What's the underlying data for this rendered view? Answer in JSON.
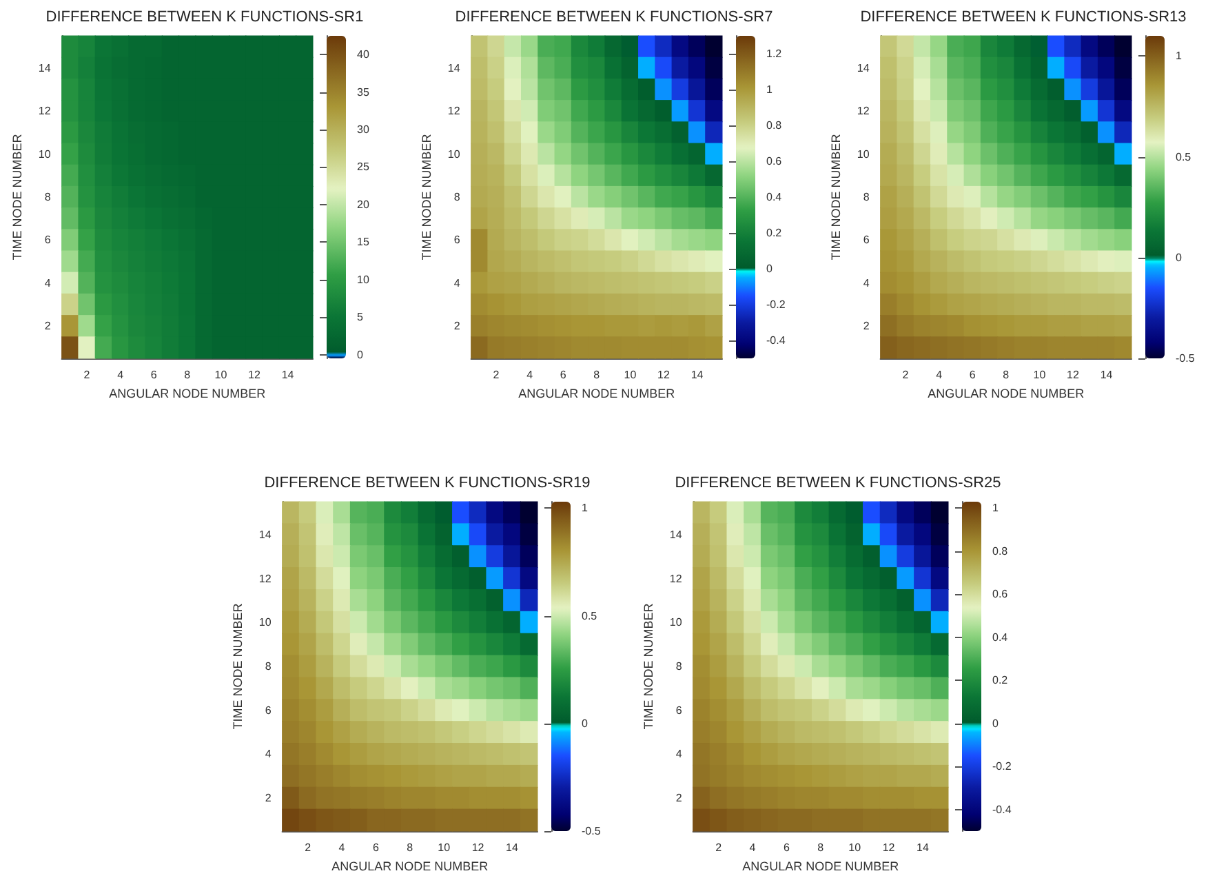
{
  "chart_data": [
    {
      "type": "heatmap",
      "title": "DIFFERENCE BETWEEN K FUNCTIONS-SR1",
      "xlabel": "ANGULAR NODE NUMBER",
      "ylabel": "TIME NODE NUMBER",
      "categories": [
        null,
        "2",
        null,
        "4",
        null,
        "6",
        null,
        "8",
        null,
        "10",
        null,
        "12",
        null,
        "14",
        null
      ],
      "y_categories": [
        null,
        "14",
        null,
        "12",
        null,
        "10",
        null,
        "8",
        null,
        "6",
        null,
        "4",
        null,
        "2",
        null
      ],
      "cells": [
        [
          8,
          7,
          5,
          4,
          3,
          3,
          2,
          2,
          2,
          2,
          2,
          2,
          2,
          2,
          2
        ],
        [
          8,
          6.5,
          4.5,
          3.5,
          3,
          2.5,
          2,
          2,
          2,
          2,
          2,
          2,
          2,
          2,
          2
        ],
        [
          9,
          7,
          5,
          4,
          3,
          2.5,
          2,
          2,
          2,
          2,
          2,
          2,
          2,
          2,
          2
        ],
        [
          9,
          7,
          5.3,
          4,
          3,
          2.5,
          2,
          2,
          2,
          2,
          2,
          2,
          2,
          2,
          2
        ],
        [
          10,
          7.5,
          5.8,
          4.5,
          3.5,
          3,
          2.5,
          2,
          2,
          2,
          2,
          2,
          2,
          2,
          2
        ],
        [
          11,
          8,
          6,
          4.7,
          3.8,
          3,
          2.5,
          2,
          2,
          2,
          2,
          2,
          2,
          2,
          2
        ],
        [
          12,
          8.5,
          6.5,
          5.2,
          4.2,
          3.5,
          3,
          2.5,
          2,
          2,
          2,
          2,
          2,
          2,
          2
        ],
        [
          13,
          9,
          7,
          6,
          5,
          4,
          3.5,
          3,
          2,
          2,
          2,
          2,
          2,
          2,
          2
        ],
        [
          14,
          10,
          7.5,
          6.5,
          5.7,
          5,
          4,
          3.5,
          2.5,
          2,
          2,
          2,
          2,
          2,
          2
        ],
        [
          16,
          11,
          8,
          7,
          6.3,
          5.7,
          5,
          4,
          3,
          2,
          2,
          2,
          2,
          2,
          2
        ],
        [
          18,
          12,
          8.5,
          7.5,
          6.6,
          6,
          5.4,
          4.5,
          3,
          2,
          2,
          2,
          2,
          2,
          2
        ],
        [
          21,
          13,
          9,
          8,
          7,
          6.3,
          5.6,
          4.7,
          3,
          2,
          2,
          2,
          2,
          2,
          2
        ],
        [
          26,
          15,
          10,
          8.5,
          7.3,
          6.5,
          5.8,
          4.8,
          3,
          2,
          2,
          2,
          2,
          2,
          2
        ],
        [
          33,
          18,
          11,
          9,
          7.5,
          6.8,
          6,
          4.9,
          3,
          2,
          2,
          2,
          2,
          2,
          2
        ],
        [
          40,
          22,
          12,
          9.5,
          8,
          7,
          6,
          5,
          3,
          2,
          2,
          2,
          2,
          2,
          2
        ]
      ],
      "clim": [
        -0.5,
        42.5
      ],
      "cticks": [
        0,
        5,
        10,
        15,
        20,
        25,
        30,
        35,
        40
      ]
    },
    {
      "type": "heatmap",
      "title": "DIFFERENCE BETWEEN K FUNCTIONS-SR7",
      "xlabel": "ANGULAR NODE NUMBER",
      "ylabel": "TIME NODE NUMBER",
      "categories": [
        null,
        "2",
        null,
        "4",
        null,
        "6",
        null,
        "8",
        null,
        "10",
        null,
        "12",
        null,
        "14",
        null
      ],
      "y_categories": [
        null,
        "14",
        null,
        "12",
        null,
        "10",
        null,
        "8",
        null,
        "6",
        null,
        "4",
        null,
        "2",
        null
      ],
      "cells": [
        [
          0.85,
          0.78,
          0.62,
          0.54,
          0.38,
          0.36,
          0.23,
          0.18,
          0.08,
          0,
          -0.15,
          -0.25,
          -0.38,
          -0.45,
          -0.5
        ],
        [
          0.87,
          0.8,
          0.66,
          0.58,
          0.42,
          0.38,
          0.26,
          0.23,
          0.13,
          0.05,
          -0.05,
          -0.16,
          -0.3,
          -0.39,
          -0.48
        ],
        [
          0.88,
          0.82,
          0.68,
          0.6,
          0.46,
          0.42,
          0.31,
          0.26,
          0.18,
          0.1,
          0.02,
          -0.08,
          -0.2,
          -0.32,
          -0.45
        ],
        [
          0.9,
          0.84,
          0.72,
          0.64,
          0.49,
          0.46,
          0.36,
          0.31,
          0.23,
          0.14,
          0.08,
          0.02,
          -0.07,
          -0.22,
          -0.38
        ],
        [
          0.91,
          0.86,
          0.76,
          0.67,
          0.54,
          0.49,
          0.4,
          0.35,
          0.29,
          0.22,
          0.16,
          0.11,
          0.04,
          -0.08,
          -0.26
        ],
        [
          0.92,
          0.89,
          0.79,
          0.71,
          0.6,
          0.53,
          0.46,
          0.4,
          0.35,
          0.29,
          0.23,
          0.18,
          0.12,
          0.06,
          -0.05
        ],
        [
          0.93,
          0.91,
          0.83,
          0.74,
          0.66,
          0.59,
          0.52,
          0.47,
          0.41,
          0.36,
          0.31,
          0.26,
          0.22,
          0.17,
          0.08
        ],
        [
          0.94,
          0.92,
          0.86,
          0.78,
          0.72,
          0.67,
          0.6,
          0.54,
          0.5,
          0.46,
          0.41,
          0.36,
          0.34,
          0.29,
          0.23
        ],
        [
          0.96,
          0.93,
          0.88,
          0.83,
          0.78,
          0.74,
          0.7,
          0.65,
          0.6,
          0.54,
          0.52,
          0.48,
          0.44,
          0.42,
          0.37
        ],
        [
          1.05,
          0.94,
          0.9,
          0.87,
          0.83,
          0.8,
          0.79,
          0.76,
          0.72,
          0.67,
          0.64,
          0.6,
          0.56,
          0.54,
          0.52
        ],
        [
          1.05,
          0.95,
          0.93,
          0.9,
          0.88,
          0.86,
          0.84,
          0.83,
          0.82,
          0.8,
          0.77,
          0.74,
          0.72,
          0.7,
          0.67
        ],
        [
          1.0,
          0.97,
          0.96,
          0.94,
          0.92,
          0.9,
          0.89,
          0.88,
          0.87,
          0.86,
          0.85,
          0.84,
          0.83,
          0.82,
          0.8
        ],
        [
          1.04,
          1.02,
          1.0,
          0.98,
          0.97,
          0.96,
          0.95,
          0.94,
          0.93,
          0.92,
          0.91,
          0.9,
          0.9,
          0.89,
          0.88
        ],
        [
          1.08,
          1.06,
          1.05,
          1.04,
          1.03,
          1.02,
          1.01,
          1.01,
          1.0,
          1.0,
          0.99,
          1.0,
          0.99,
          1.0,
          0.97
        ],
        [
          1.15,
          1.1,
          1.09,
          1.08,
          1.07,
          1.06,
          1.05,
          1.05,
          1.05,
          1.04,
          1.04,
          1.04,
          1.04,
          1.03,
          1.02
        ]
      ],
      "clim": [
        -0.5,
        1.3
      ],
      "cticks": [
        -0.4,
        -0.2,
        0,
        0.2,
        0.4,
        0.6,
        0.8,
        1,
        1.2
      ]
    },
    {
      "type": "heatmap",
      "title": "DIFFERENCE BETWEEN K FUNCTIONS-SR13",
      "xlabel": "ANGULAR NODE NUMBER",
      "ylabel": "TIME NODE NUMBER",
      "categories": [
        null,
        "2",
        null,
        "4",
        null,
        "6",
        null,
        "8",
        null,
        "10",
        null,
        "12",
        null,
        "14",
        null
      ],
      "y_categories": [
        null,
        "14",
        null,
        "12",
        null,
        "10",
        null,
        "8",
        null,
        "6",
        null,
        "4",
        null,
        "2",
        null
      ],
      "cells": [
        [
          0.71,
          0.65,
          0.52,
          0.45,
          0.32,
          0.3,
          0.19,
          0.15,
          0.07,
          0,
          -0.15,
          -0.25,
          -0.38,
          -0.45,
          -0.5
        ],
        [
          0.73,
          0.67,
          0.55,
          0.48,
          0.35,
          0.32,
          0.22,
          0.19,
          0.11,
          0.04,
          -0.05,
          -0.16,
          -0.3,
          -0.39,
          -0.48
        ],
        [
          0.74,
          0.68,
          0.57,
          0.5,
          0.38,
          0.35,
          0.26,
          0.22,
          0.15,
          0.08,
          0.02,
          -0.08,
          -0.2,
          -0.32,
          -0.45
        ],
        [
          0.76,
          0.7,
          0.6,
          0.53,
          0.41,
          0.38,
          0.3,
          0.26,
          0.19,
          0.12,
          0.07,
          0.02,
          -0.07,
          -0.22,
          -0.38
        ],
        [
          0.77,
          0.72,
          0.63,
          0.56,
          0.45,
          0.41,
          0.33,
          0.29,
          0.24,
          0.18,
          0.13,
          0.09,
          0.03,
          -0.08,
          -0.26
        ],
        [
          0.79,
          0.74,
          0.66,
          0.59,
          0.5,
          0.44,
          0.38,
          0.33,
          0.29,
          0.24,
          0.19,
          0.15,
          0.1,
          0.05,
          -0.05
        ],
        [
          0.8,
          0.76,
          0.69,
          0.62,
          0.55,
          0.49,
          0.43,
          0.39,
          0.34,
          0.3,
          0.26,
          0.22,
          0.18,
          0.14,
          0.07
        ],
        [
          0.82,
          0.78,
          0.72,
          0.65,
          0.6,
          0.56,
          0.5,
          0.45,
          0.42,
          0.38,
          0.34,
          0.3,
          0.28,
          0.24,
          0.19
        ],
        [
          0.83,
          0.8,
          0.75,
          0.69,
          0.65,
          0.62,
          0.58,
          0.54,
          0.5,
          0.45,
          0.43,
          0.4,
          0.37,
          0.35,
          0.31
        ],
        [
          0.85,
          0.82,
          0.78,
          0.73,
          0.69,
          0.67,
          0.66,
          0.63,
          0.6,
          0.56,
          0.53,
          0.5,
          0.47,
          0.45,
          0.43
        ],
        [
          0.86,
          0.84,
          0.8,
          0.77,
          0.74,
          0.72,
          0.7,
          0.69,
          0.68,
          0.66,
          0.64,
          0.62,
          0.6,
          0.58,
          0.56
        ],
        [
          0.88,
          0.86,
          0.83,
          0.8,
          0.78,
          0.76,
          0.75,
          0.74,
          0.73,
          0.72,
          0.71,
          0.7,
          0.69,
          0.68,
          0.67
        ],
        [
          0.92,
          0.89,
          0.86,
          0.84,
          0.82,
          0.81,
          0.8,
          0.79,
          0.78,
          0.77,
          0.76,
          0.76,
          0.75,
          0.75,
          0.74
        ],
        [
          0.96,
          0.93,
          0.91,
          0.9,
          0.89,
          0.87,
          0.86,
          0.85,
          0.84,
          0.84,
          0.83,
          0.83,
          0.82,
          0.82,
          0.81
        ],
        [
          1.0,
          0.98,
          0.97,
          0.96,
          0.95,
          0.94,
          0.93,
          0.92,
          0.91,
          0.91,
          0.9,
          0.9,
          0.9,
          0.9,
          0.89
        ]
      ],
      "clim": [
        -0.5,
        1.1
      ],
      "cticks": [
        -0.5,
        0,
        0.5,
        1
      ]
    },
    {
      "type": "heatmap",
      "title": "DIFFERENCE BETWEEN K FUNCTIONS-SR19",
      "xlabel": "ANGULAR NODE NUMBER",
      "ylabel": "TIME NODE NUMBER",
      "categories": [
        null,
        "2",
        null,
        "4",
        null,
        "6",
        null,
        "8",
        null,
        "10",
        null,
        "12",
        null,
        "14",
        null
      ],
      "y_categories": [
        null,
        "14",
        null,
        "12",
        null,
        "10",
        null,
        "8",
        null,
        "6",
        null,
        "4",
        null,
        "2",
        null
      ],
      "cells": [
        [
          0.71,
          0.65,
          0.52,
          0.45,
          0.32,
          0.3,
          0.19,
          0.15,
          0.07,
          0,
          -0.15,
          -0.25,
          -0.38,
          -0.45,
          -0.5
        ],
        [
          0.73,
          0.67,
          0.55,
          0.48,
          0.35,
          0.32,
          0.22,
          0.19,
          0.11,
          0.04,
          -0.05,
          -0.16,
          -0.3,
          -0.39,
          -0.48
        ],
        [
          0.74,
          0.68,
          0.57,
          0.5,
          0.38,
          0.35,
          0.26,
          0.22,
          0.15,
          0.08,
          0.02,
          -0.08,
          -0.2,
          -0.32,
          -0.45
        ],
        [
          0.76,
          0.7,
          0.6,
          0.53,
          0.41,
          0.38,
          0.3,
          0.26,
          0.19,
          0.12,
          0.07,
          0.02,
          -0.07,
          -0.22,
          -0.38
        ],
        [
          0.77,
          0.72,
          0.63,
          0.56,
          0.45,
          0.41,
          0.33,
          0.29,
          0.24,
          0.18,
          0.13,
          0.09,
          0.03,
          -0.08,
          -0.26
        ],
        [
          0.79,
          0.74,
          0.66,
          0.59,
          0.5,
          0.44,
          0.38,
          0.33,
          0.29,
          0.24,
          0.19,
          0.15,
          0.1,
          0.05,
          -0.05
        ],
        [
          0.8,
          0.76,
          0.69,
          0.62,
          0.55,
          0.49,
          0.43,
          0.39,
          0.34,
          0.3,
          0.26,
          0.22,
          0.18,
          0.14,
          0.07
        ],
        [
          0.82,
          0.78,
          0.72,
          0.65,
          0.6,
          0.56,
          0.5,
          0.45,
          0.42,
          0.38,
          0.34,
          0.3,
          0.28,
          0.24,
          0.19
        ],
        [
          0.83,
          0.8,
          0.75,
          0.69,
          0.65,
          0.62,
          0.58,
          0.54,
          0.5,
          0.45,
          0.43,
          0.4,
          0.37,
          0.35,
          0.31
        ],
        [
          0.85,
          0.82,
          0.78,
          0.73,
          0.69,
          0.67,
          0.66,
          0.63,
          0.6,
          0.56,
          0.53,
          0.5,
          0.47,
          0.45,
          0.43
        ],
        [
          0.86,
          0.84,
          0.8,
          0.77,
          0.74,
          0.72,
          0.7,
          0.69,
          0.68,
          0.66,
          0.64,
          0.62,
          0.6,
          0.58,
          0.56
        ],
        [
          0.88,
          0.86,
          0.83,
          0.8,
          0.78,
          0.76,
          0.75,
          0.74,
          0.73,
          0.72,
          0.71,
          0.7,
          0.69,
          0.68,
          0.67
        ],
        [
          0.9,
          0.88,
          0.86,
          0.84,
          0.82,
          0.81,
          0.8,
          0.79,
          0.78,
          0.77,
          0.76,
          0.76,
          0.75,
          0.75,
          0.74
        ],
        [
          0.95,
          0.91,
          0.89,
          0.88,
          0.87,
          0.86,
          0.85,
          0.84,
          0.84,
          0.83,
          0.83,
          0.82,
          0.82,
          0.82,
          0.81
        ],
        [
          1.0,
          0.98,
          0.96,
          0.95,
          0.94,
          0.92,
          0.92,
          0.91,
          0.91,
          0.9,
          0.9,
          0.9,
          0.9,
          0.9,
          0.89
        ]
      ],
      "clim": [
        -0.5,
        1.03
      ],
      "cticks": [
        -0.5,
        0,
        0.5,
        1
      ]
    },
    {
      "type": "heatmap",
      "title": "DIFFERENCE BETWEEN K FUNCTIONS-SR25",
      "xlabel": "ANGULAR NODE NUMBER",
      "ylabel": "TIME NODE NUMBER",
      "categories": [
        null,
        "2",
        null,
        "4",
        null,
        "6",
        null,
        "8",
        null,
        "10",
        null,
        "12",
        null,
        "14",
        null
      ],
      "y_categories": [
        null,
        "14",
        null,
        "12",
        null,
        "10",
        null,
        "8",
        null,
        "6",
        null,
        "4",
        null,
        "2",
        null
      ],
      "cells": [
        [
          0.71,
          0.65,
          0.52,
          0.45,
          0.32,
          0.3,
          0.19,
          0.15,
          0.07,
          0,
          -0.15,
          -0.25,
          -0.38,
          -0.45,
          -0.5
        ],
        [
          0.73,
          0.67,
          0.55,
          0.48,
          0.35,
          0.32,
          0.22,
          0.19,
          0.11,
          0.04,
          -0.05,
          -0.16,
          -0.3,
          -0.39,
          -0.48
        ],
        [
          0.74,
          0.68,
          0.57,
          0.5,
          0.38,
          0.35,
          0.26,
          0.22,
          0.15,
          0.08,
          0.02,
          -0.08,
          -0.2,
          -0.32,
          -0.45
        ],
        [
          0.76,
          0.7,
          0.6,
          0.53,
          0.41,
          0.38,
          0.3,
          0.26,
          0.19,
          0.12,
          0.07,
          0.02,
          -0.07,
          -0.22,
          -0.38
        ],
        [
          0.77,
          0.72,
          0.63,
          0.56,
          0.45,
          0.41,
          0.33,
          0.29,
          0.24,
          0.18,
          0.13,
          0.09,
          0.03,
          -0.08,
          -0.26
        ],
        [
          0.79,
          0.74,
          0.66,
          0.59,
          0.5,
          0.44,
          0.38,
          0.33,
          0.29,
          0.24,
          0.19,
          0.15,
          0.1,
          0.05,
          -0.05
        ],
        [
          0.8,
          0.76,
          0.69,
          0.62,
          0.55,
          0.49,
          0.43,
          0.39,
          0.34,
          0.3,
          0.26,
          0.22,
          0.18,
          0.14,
          0.07
        ],
        [
          0.82,
          0.78,
          0.72,
          0.65,
          0.6,
          0.56,
          0.5,
          0.45,
          0.42,
          0.38,
          0.34,
          0.3,
          0.28,
          0.24,
          0.19
        ],
        [
          0.83,
          0.8,
          0.75,
          0.69,
          0.65,
          0.62,
          0.58,
          0.54,
          0.5,
          0.45,
          0.43,
          0.4,
          0.37,
          0.35,
          0.31
        ],
        [
          0.85,
          0.82,
          0.78,
          0.73,
          0.69,
          0.67,
          0.66,
          0.63,
          0.6,
          0.56,
          0.53,
          0.5,
          0.47,
          0.45,
          0.43
        ],
        [
          0.86,
          0.84,
          0.8,
          0.77,
          0.74,
          0.72,
          0.7,
          0.69,
          0.68,
          0.66,
          0.64,
          0.62,
          0.6,
          0.58,
          0.56
        ],
        [
          0.88,
          0.86,
          0.83,
          0.8,
          0.78,
          0.76,
          0.75,
          0.74,
          0.73,
          0.72,
          0.71,
          0.7,
          0.69,
          0.68,
          0.67
        ],
        [
          0.89,
          0.87,
          0.85,
          0.83,
          0.82,
          0.81,
          0.8,
          0.79,
          0.78,
          0.77,
          0.76,
          0.76,
          0.75,
          0.75,
          0.74
        ],
        [
          0.93,
          0.9,
          0.88,
          0.87,
          0.86,
          0.85,
          0.84,
          0.84,
          0.83,
          0.83,
          0.82,
          0.82,
          0.82,
          0.81,
          0.81
        ],
        [
          0.98,
          0.96,
          0.94,
          0.93,
          0.92,
          0.91,
          0.91,
          0.9,
          0.9,
          0.9,
          0.89,
          0.89,
          0.89,
          0.89,
          0.88
        ]
      ],
      "clim": [
        -0.5,
        1.03
      ],
      "cticks": [
        -0.4,
        -0.2,
        0,
        0.2,
        0.4,
        0.6,
        0.8,
        1
      ]
    }
  ]
}
